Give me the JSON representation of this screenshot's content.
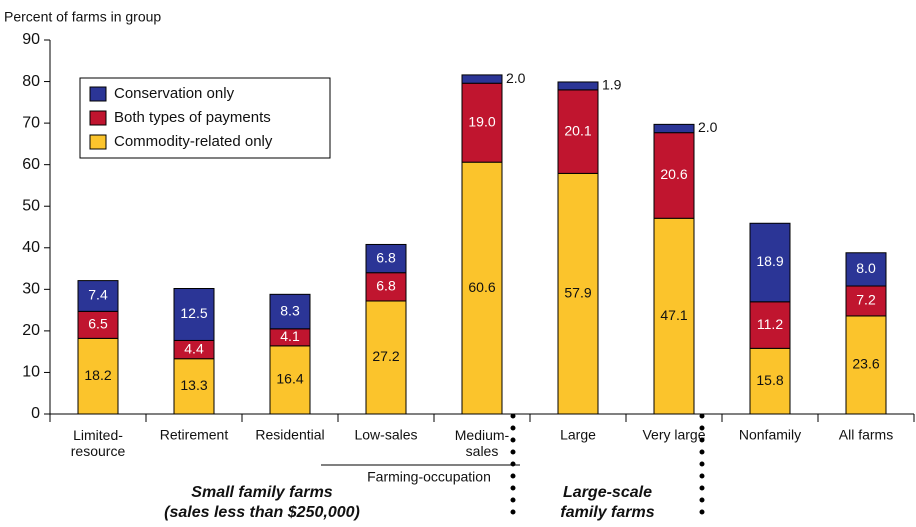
{
  "chart_data": {
    "type": "stacked_bar",
    "y_axis_label": "Percent of farms in group",
    "categories": [
      "Limited-\nresource",
      "Retirement",
      "Residential",
      "Low-sales",
      "Medium-\nsales",
      "Large",
      "Very large",
      "Nonfamily",
      "All farms"
    ],
    "series": [
      {
        "name": "Commodity-related only",
        "color": "#fbc42c",
        "values": [
          18.2,
          13.3,
          16.4,
          27.2,
          60.6,
          57.9,
          47.1,
          15.8,
          23.6
        ]
      },
      {
        "name": "Both types of payments",
        "color": "#c0152f",
        "values": [
          6.5,
          4.4,
          4.1,
          6.8,
          19.0,
          20.1,
          20.6,
          11.2,
          7.2
        ],
        "value_labels": [
          "6.5",
          "4.4",
          "4.1",
          "6.8",
          "19.0",
          "20.1",
          "20.6",
          "11.2",
          "7.2"
        ]
      },
      {
        "name": "Conservation only",
        "color": "#2b3596",
        "values": [
          7.4,
          12.5,
          8.3,
          6.8,
          2.0,
          1.9,
          2.0,
          18.9,
          8.0
        ],
        "value_labels": [
          "7.4",
          "12.5",
          "8.3",
          "6.8",
          "2.0",
          "1.9",
          "2.0",
          "18.9",
          "8.0"
        ]
      }
    ],
    "ylim": [
      0,
      90
    ],
    "yticks": [
      0,
      10,
      20,
      30,
      40,
      50,
      60,
      70,
      80,
      90
    ],
    "legend": "upper left",
    "annotations": [
      "Small family farms\n(sales less than $250,000)",
      "Farming-occupation",
      "Large-scale\nfamily farms"
    ]
  }
}
